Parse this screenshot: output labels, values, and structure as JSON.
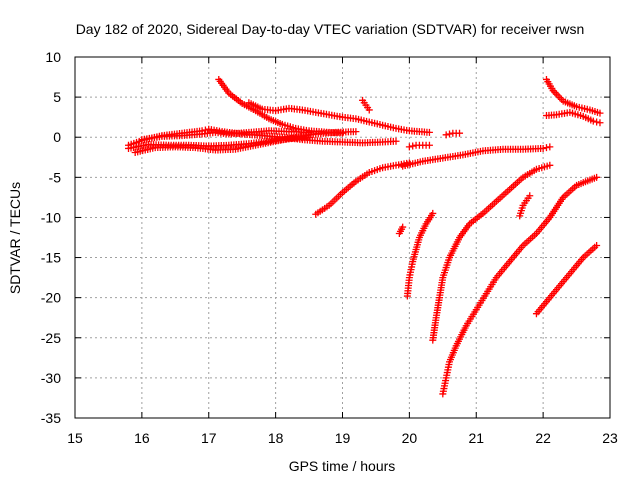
{
  "chart_data": {
    "type": "scatter",
    "title": "Day 182 of 2020, Sidereal Day-to-day VTEC variation (SDTVAR) for receiver rwsn",
    "xlabel": "GPS time / hours",
    "ylabel": "SDTVAR / TECUs",
    "xlim": [
      15,
      23
    ],
    "ylim": [
      -35,
      10
    ],
    "xticks": [
      15,
      16,
      17,
      18,
      19,
      20,
      21,
      22,
      23
    ],
    "yticks": [
      -35,
      -30,
      -25,
      -20,
      -15,
      -10,
      -5,
      0,
      5,
      10
    ],
    "grid": true,
    "marker": "plus",
    "color": "#ff0000",
    "series": [
      {
        "points": [
          [
            15.8,
            -1.0
          ],
          [
            16.0,
            -0.4
          ],
          [
            16.3,
            0.2
          ],
          [
            16.6,
            0.5
          ],
          [
            16.9,
            0.8
          ],
          [
            17.0,
            1.0
          ],
          [
            17.2,
            0.7
          ],
          [
            17.5,
            0.4
          ],
          [
            17.8,
            0.2
          ],
          [
            18.1,
            0.0
          ],
          [
            18.4,
            -0.3
          ],
          [
            18.7,
            -0.5
          ],
          [
            19.0,
            -0.6
          ],
          [
            19.3,
            -0.7
          ],
          [
            19.6,
            -0.6
          ],
          [
            19.8,
            -0.5
          ]
        ]
      },
      {
        "points": [
          [
            15.8,
            -1.4
          ],
          [
            16.1,
            -0.9
          ],
          [
            16.4,
            -1.0
          ],
          [
            16.7,
            -1.0
          ],
          [
            17.0,
            -1.1
          ],
          [
            17.3,
            -1.0
          ],
          [
            17.6,
            -0.8
          ],
          [
            17.9,
            -0.5
          ],
          [
            18.2,
            -0.2
          ],
          [
            18.5,
            0.0
          ]
        ]
      },
      {
        "points": [
          [
            15.9,
            -1.9
          ],
          [
            16.2,
            -1.3
          ],
          [
            16.5,
            -1.2
          ],
          [
            16.8,
            -1.3
          ],
          [
            17.1,
            -1.6
          ],
          [
            17.4,
            -1.5
          ],
          [
            17.7,
            -1.0
          ],
          [
            18.0,
            -0.5
          ],
          [
            18.3,
            0.0
          ],
          [
            18.6,
            0.4
          ],
          [
            18.9,
            0.6
          ],
          [
            19.2,
            0.7
          ]
        ]
      },
      {
        "points": [
          [
            16.0,
            -0.3
          ],
          [
            16.3,
            0.1
          ],
          [
            16.6,
            0.2
          ],
          [
            16.9,
            0.4
          ],
          [
            17.1,
            0.6
          ],
          [
            17.3,
            0.4
          ],
          [
            17.6,
            0.6
          ],
          [
            17.9,
            0.8
          ],
          [
            18.2,
            0.7
          ],
          [
            18.5,
            0.6
          ]
        ]
      },
      {
        "points": [
          [
            17.15,
            7.2
          ],
          [
            17.3,
            5.5
          ],
          [
            17.5,
            4.2
          ],
          [
            17.7,
            3.3
          ],
          [
            17.9,
            2.3
          ],
          [
            18.1,
            1.6
          ],
          [
            18.3,
            1.1
          ],
          [
            18.5,
            0.8
          ],
          [
            18.8,
            0.6
          ],
          [
            19.0,
            0.5
          ]
        ]
      },
      {
        "points": [
          [
            17.6,
            4.3
          ],
          [
            17.8,
            3.5
          ],
          [
            18.0,
            3.3
          ],
          [
            18.2,
            3.6
          ],
          [
            18.4,
            3.4
          ],
          [
            18.6,
            3.1
          ],
          [
            18.8,
            2.8
          ],
          [
            19.0,
            2.5
          ],
          [
            19.2,
            2.3
          ],
          [
            19.4,
            1.9
          ],
          [
            19.6,
            1.5
          ],
          [
            19.8,
            1.1
          ],
          [
            20.0,
            0.8
          ],
          [
            20.3,
            0.6
          ]
        ]
      },
      {
        "points": [
          [
            19.3,
            4.6
          ],
          [
            19.35,
            4.0
          ],
          [
            19.4,
            3.4
          ]
        ]
      },
      {
        "points": [
          [
            20.0,
            -1.2
          ],
          [
            20.1,
            -1.0
          ],
          [
            20.2,
            -1.0
          ],
          [
            20.3,
            -1.0
          ]
        ]
      },
      {
        "points": [
          [
            20.55,
            0.3
          ],
          [
            20.65,
            0.5
          ],
          [
            20.75,
            0.5
          ]
        ]
      },
      {
        "points": [
          [
            19.9,
            -3.6
          ],
          [
            20.2,
            -3.0
          ],
          [
            20.5,
            -2.6
          ],
          [
            20.8,
            -2.2
          ],
          [
            21.1,
            -1.7
          ],
          [
            21.4,
            -1.5
          ],
          [
            21.7,
            -1.5
          ],
          [
            22.0,
            -1.4
          ],
          [
            22.1,
            -1.2
          ]
        ]
      },
      {
        "points": [
          [
            18.6,
            -9.6
          ],
          [
            18.8,
            -8.5
          ],
          [
            19.0,
            -6.9
          ],
          [
            19.2,
            -5.5
          ],
          [
            19.4,
            -4.4
          ],
          [
            19.6,
            -3.8
          ],
          [
            19.8,
            -3.5
          ],
          [
            20.0,
            -3.2
          ]
        ]
      },
      {
        "points": [
          [
            19.85,
            -12.0
          ],
          [
            19.9,
            -11.2
          ]
        ]
      },
      {
        "points": [
          [
            19.97,
            -19.8
          ],
          [
            20.0,
            -17.5
          ],
          [
            20.05,
            -15.5
          ],
          [
            20.1,
            -14.0
          ],
          [
            20.15,
            -12.5
          ],
          [
            20.25,
            -10.8
          ],
          [
            20.35,
            -9.5
          ]
        ]
      },
      {
        "points": [
          [
            20.35,
            -25.3
          ],
          [
            20.4,
            -22.5
          ],
          [
            20.45,
            -20.0
          ],
          [
            20.5,
            -17.5
          ],
          [
            20.6,
            -15.0
          ],
          [
            20.75,
            -12.5
          ],
          [
            20.9,
            -10.8
          ],
          [
            21.1,
            -9.5
          ],
          [
            21.3,
            -8.0
          ],
          [
            21.5,
            -6.5
          ],
          [
            21.7,
            -5.0
          ],
          [
            21.9,
            -4.0
          ],
          [
            22.1,
            -3.5
          ]
        ]
      },
      {
        "points": [
          [
            20.5,
            -32.0
          ],
          [
            20.55,
            -30.0
          ],
          [
            20.6,
            -28.0
          ],
          [
            20.7,
            -26.0
          ],
          [
            20.85,
            -23.5
          ],
          [
            21.0,
            -21.5
          ],
          [
            21.15,
            -19.5
          ],
          [
            21.3,
            -17.5
          ],
          [
            21.5,
            -15.5
          ],
          [
            21.7,
            -13.5
          ],
          [
            21.9,
            -12.0
          ],
          [
            22.1,
            -10.0
          ],
          [
            22.3,
            -7.5
          ],
          [
            22.5,
            -6.0
          ],
          [
            22.8,
            -5.0
          ]
        ]
      },
      {
        "points": [
          [
            21.65,
            -9.8
          ],
          [
            21.7,
            -8.5
          ],
          [
            21.8,
            -7.3
          ]
        ]
      },
      {
        "points": [
          [
            21.9,
            -22.0
          ],
          [
            22.0,
            -21.0
          ],
          [
            22.2,
            -19.0
          ],
          [
            22.4,
            -17.0
          ],
          [
            22.6,
            -15.0
          ],
          [
            22.8,
            -13.5
          ]
        ]
      },
      {
        "points": [
          [
            22.05,
            7.2
          ],
          [
            22.15,
            5.8
          ],
          [
            22.3,
            4.5
          ],
          [
            22.5,
            3.8
          ],
          [
            22.7,
            3.4
          ],
          [
            22.85,
            3.0
          ]
        ]
      },
      {
        "points": [
          [
            22.05,
            2.7
          ],
          [
            22.2,
            2.8
          ],
          [
            22.4,
            3.1
          ],
          [
            22.6,
            2.6
          ],
          [
            22.75,
            2.0
          ],
          [
            22.85,
            1.8
          ]
        ]
      }
    ]
  }
}
